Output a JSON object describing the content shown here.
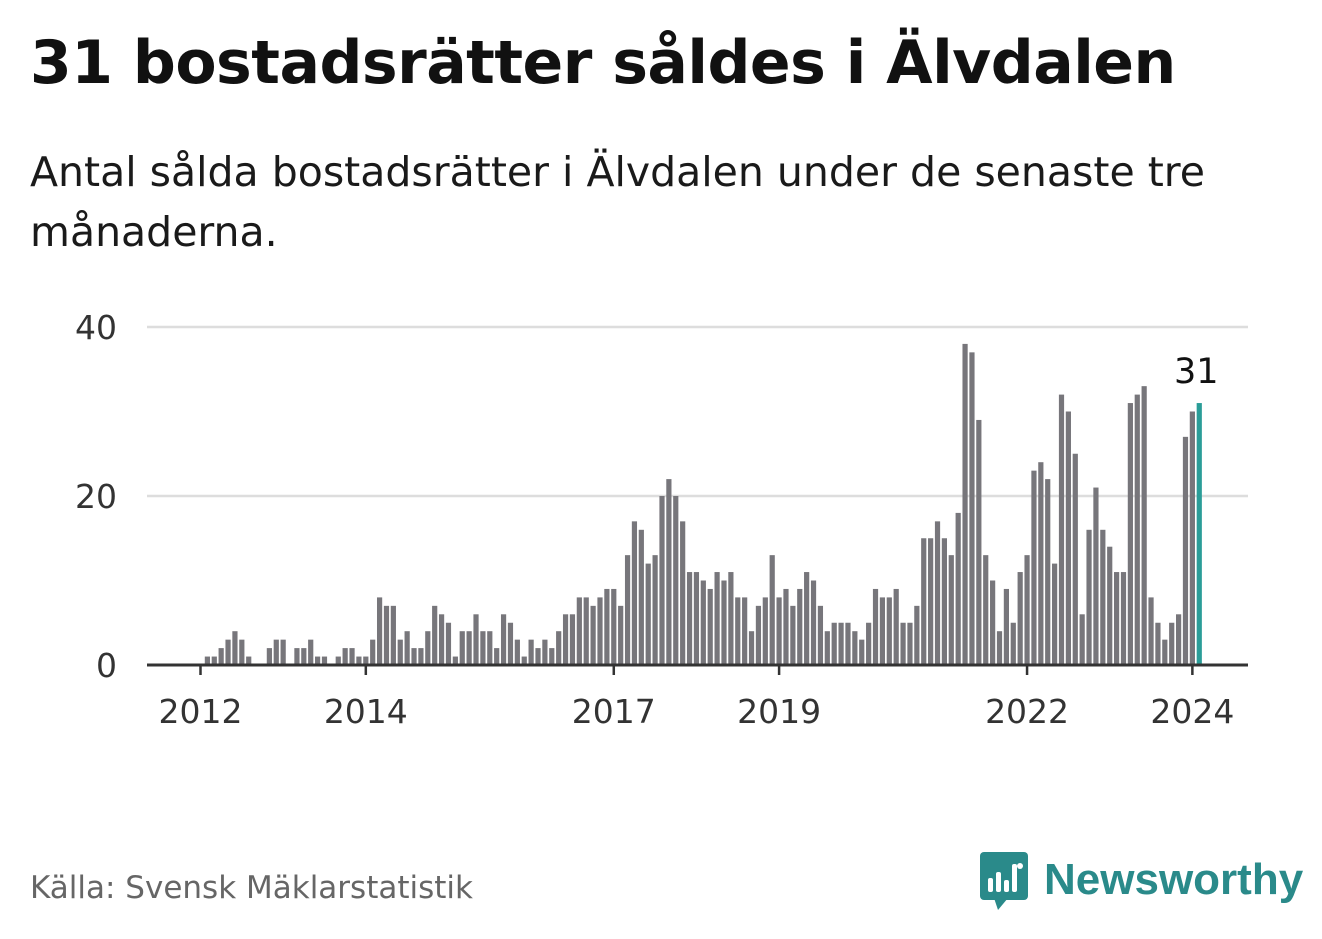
{
  "title": "31 bostadsrätter såldes i Älvdalen",
  "subtitle": "Antal sålda bostadsrätter i Älvdalen under de senaste tre månaderna.",
  "source": "Källa: Svensk Mäklarstatistik",
  "brand": {
    "name": "Newsworthy",
    "color": "#2a8a8a"
  },
  "colors": {
    "bar": "#77767b",
    "highlight": "#2a9d98",
    "grid": "#dddddd",
    "axis": "#333333"
  },
  "chart_data": {
    "type": "bar",
    "title": "31 bostadsrätter såldes i Älvdalen",
    "xlabel": "",
    "ylabel": "",
    "ylim": [
      0,
      40
    ],
    "yticks": [
      "0",
      "20",
      "40"
    ],
    "grid": true,
    "x_start": "2011-12",
    "frequency": "monthly",
    "xticks": [
      {
        "label": "2012",
        "index": 0
      },
      {
        "label": "2014",
        "index": 24
      },
      {
        "label": "2017",
        "index": 60
      },
      {
        "label": "2019",
        "index": 84
      },
      {
        "label": "2022",
        "index": 120
      },
      {
        "label": "2024",
        "index": 144
      }
    ],
    "values": [
      0,
      1,
      1,
      2,
      3,
      4,
      3,
      1,
      0,
      0,
      2,
      3,
      3,
      0,
      2,
      2,
      3,
      1,
      1,
      0,
      1,
      2,
      2,
      1,
      1,
      3,
      8,
      7,
      7,
      3,
      4,
      2,
      2,
      4,
      7,
      6,
      5,
      1,
      4,
      4,
      6,
      4,
      4,
      2,
      6,
      5,
      3,
      1,
      3,
      2,
      3,
      2,
      4,
      6,
      6,
      8,
      8,
      7,
      8,
      9,
      9,
      7,
      13,
      17,
      16,
      12,
      13,
      20,
      22,
      20,
      17,
      11,
      11,
      10,
      9,
      11,
      10,
      11,
      8,
      8,
      4,
      7,
      8,
      13,
      8,
      9,
      7,
      9,
      11,
      10,
      7,
      4,
      5,
      5,
      5,
      4,
      3,
      5,
      9,
      8,
      8,
      9,
      5,
      5,
      7,
      15,
      15,
      17,
      15,
      13,
      18,
      38,
      37,
      29,
      13,
      10,
      4,
      9,
      5,
      11,
      13,
      23,
      24,
      22,
      12,
      32,
      30,
      25,
      6,
      16,
      21,
      16,
      14,
      11,
      11,
      31,
      32,
      33,
      8,
      5,
      3,
      5,
      6,
      27,
      30,
      31
    ],
    "highlight_index": 145,
    "annotation": "31"
  }
}
